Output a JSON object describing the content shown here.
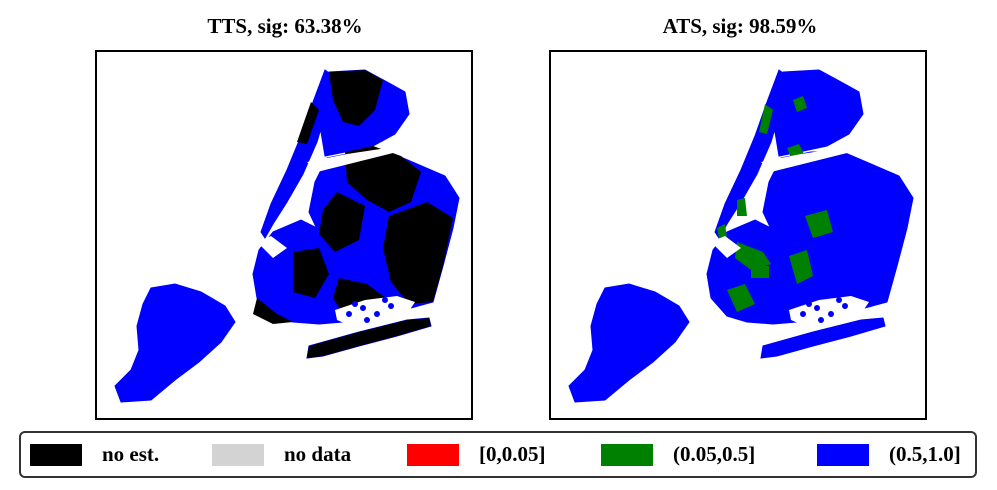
{
  "panels": [
    {
      "id": "tts",
      "title": "TTS, sig: 63.38%",
      "fill": "#0000ff",
      "patch": "#000000"
    },
    {
      "id": "ats",
      "title": "ATS, sig: 98.59%",
      "fill": "#0000ff",
      "patch": "#008000"
    }
  ],
  "legend": {
    "items": [
      {
        "label": "no est.",
        "color": "#000000"
      },
      {
        "label": "no data",
        "color": "#d3d3d3"
      },
      {
        "label": "[0,0.05]",
        "color": "#ff0000"
      },
      {
        "label": "(0.05,0.5]",
        "color": "#008000"
      },
      {
        "label": "(0.5,1.0]",
        "color": "#0000ff"
      }
    ]
  }
}
